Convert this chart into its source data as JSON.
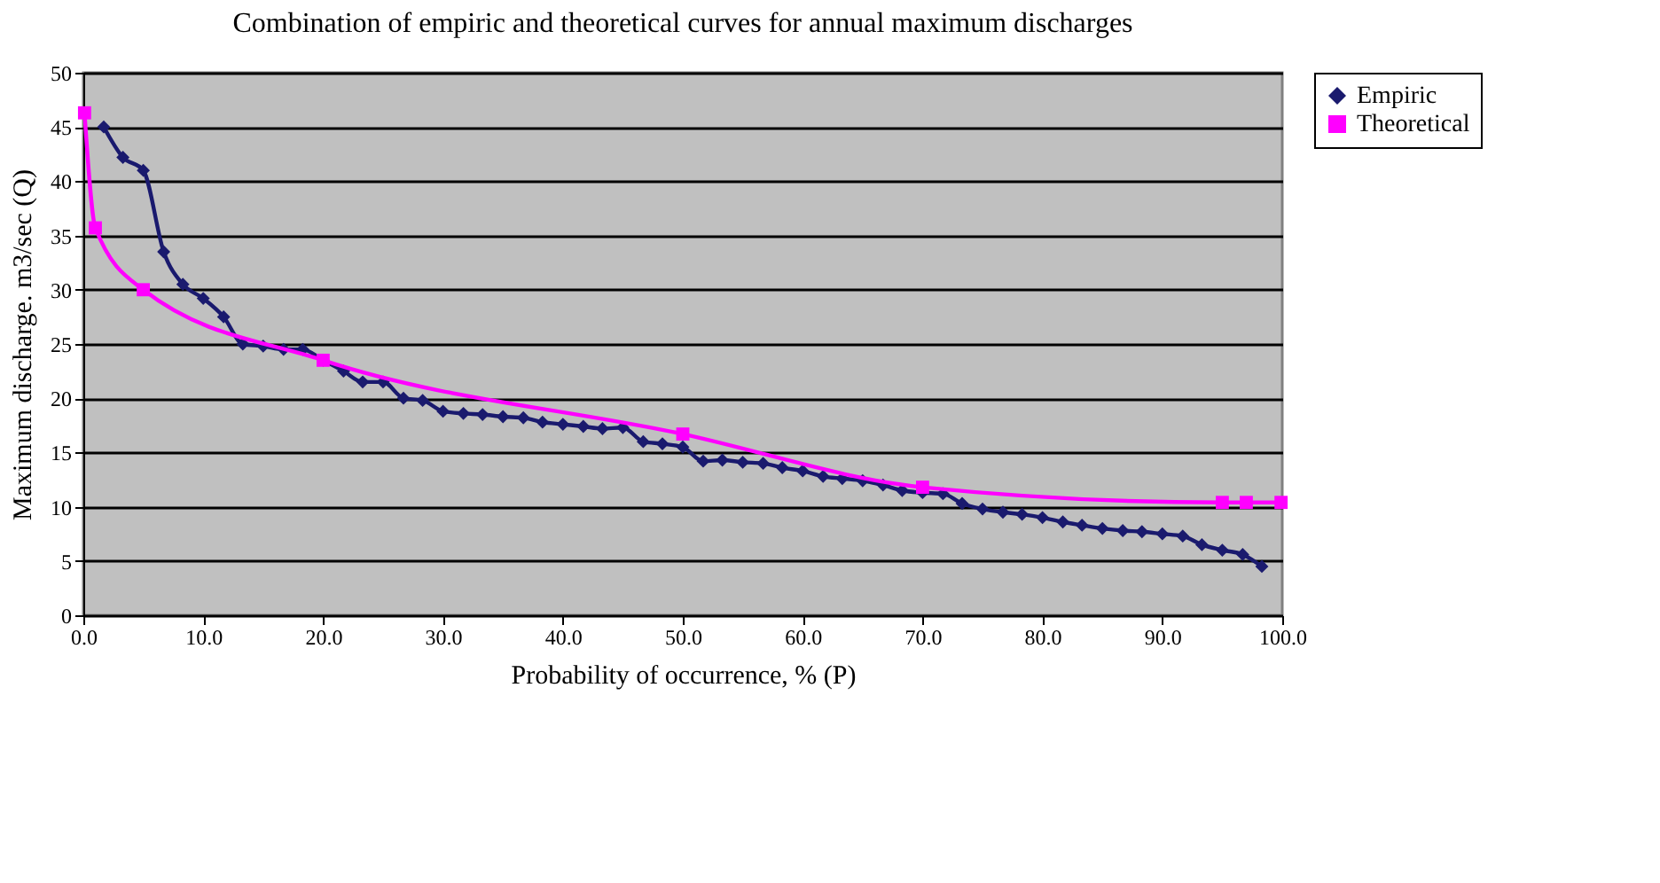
{
  "chart_data": {
    "type": "line",
    "title": "Combination of empiric and theoretical curves for annual maximum discharges",
    "xlabel": "Probability of occurrence, % (P)",
    "ylabel": "Maximum discharge. m3/sec (Q)",
    "xlim": [
      0,
      100
    ],
    "ylim": [
      0,
      50
    ],
    "xticks": [
      {
        "value": 0,
        "label": "0.0"
      },
      {
        "value": 10,
        "label": "10.0"
      },
      {
        "value": 20,
        "label": "20.0"
      },
      {
        "value": 30,
        "label": "30.0"
      },
      {
        "value": 40,
        "label": "40.0"
      },
      {
        "value": 50,
        "label": "50.0"
      },
      {
        "value": 60,
        "label": "60.0"
      },
      {
        "value": 70,
        "label": "70.0"
      },
      {
        "value": 80,
        "label": "80.0"
      },
      {
        "value": 90,
        "label": "90.0"
      },
      {
        "value": 100,
        "label": "100.0"
      }
    ],
    "yticks": [
      0,
      5,
      10,
      15,
      20,
      25,
      30,
      35,
      40,
      45,
      50
    ],
    "grid": "y",
    "legend": "right",
    "series": [
      {
        "name": "Empiric",
        "color": "#1a1a6e",
        "marker": "diamond",
        "x": [
          1.7,
          3.3,
          5.0,
          6.7,
          8.3,
          10.0,
          11.7,
          13.3,
          15.0,
          16.7,
          18.3,
          20.0,
          21.7,
          23.3,
          25.0,
          26.7,
          28.3,
          30.0,
          31.7,
          33.3,
          35.0,
          36.7,
          38.3,
          40.0,
          41.7,
          43.3,
          45.0,
          46.7,
          48.3,
          50.0,
          51.7,
          53.3,
          55.0,
          56.7,
          58.3,
          60.0,
          61.7,
          63.3,
          65.0,
          66.7,
          68.3,
          70.0,
          71.7,
          73.3,
          75.0,
          76.7,
          78.3,
          80.0,
          81.7,
          83.3,
          85.0,
          86.7,
          88.3,
          90.0,
          91.7,
          93.3,
          95.0,
          96.7,
          98.3
        ],
        "values": [
          45,
          42.2,
          41,
          33.5,
          30.5,
          29.2,
          27.5,
          25,
          24.8,
          24.5,
          24.5,
          23.5,
          22.5,
          21.5,
          21.5,
          20,
          19.8,
          18.8,
          18.6,
          18.5,
          18.3,
          18.2,
          17.8,
          17.6,
          17.4,
          17.2,
          17.3,
          16,
          15.8,
          15.5,
          14.2,
          14.3,
          14.1,
          14,
          13.6,
          13.3,
          12.8,
          12.6,
          12.4,
          12,
          11.5,
          11.3,
          11.2,
          10.3,
          9.8,
          9.5,
          9.3,
          9,
          8.6,
          8.3,
          8,
          7.8,
          7.7,
          7.5,
          7.3,
          6.5,
          6,
          5.6,
          4.5
        ]
      },
      {
        "name": "Theoretical",
        "color": "#ff00ff",
        "marker": "square",
        "x": [
          0.1,
          1,
          5,
          20,
          50,
          70,
          95,
          97,
          99.9
        ],
        "values": [
          46.3,
          35.7,
          30,
          23.5,
          16.7,
          11.8,
          10.4,
          10.4,
          10.4
        ]
      }
    ]
  }
}
